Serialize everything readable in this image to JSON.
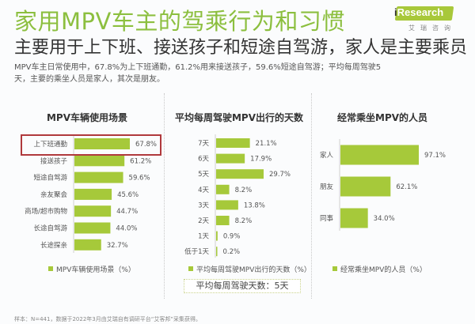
{
  "header": {
    "title": "家用MPV车主的驾乘行为和习惯",
    "subtitle": "主要用于上下班、接送孩子和短途自驾游，家人是主要乘员",
    "description": "MPV车主日常使用中，67.8%为上下班通勤，61.2%用来接送孩子，59.6%短途自驾游；平均每周驾驶5天，主要的乘坐人员是家人，其次是朋友。"
  },
  "logo": {
    "i": "i",
    "name": "Research",
    "sub": "艾瑞咨询"
  },
  "colors": {
    "bar": "#a6c93a",
    "title": "#8cbf3f",
    "highlight": "#b0393c"
  },
  "chart_data": [
    {
      "type": "bar",
      "orientation": "horizontal",
      "title": "MPV车辆使用场景",
      "categories": [
        "上下班通勤",
        "接送孩子",
        "短途自驾游",
        "亲友聚会",
        "商场/超市购物",
        "长途自驾游",
        "长途探亲"
      ],
      "values": [
        67.8,
        61.2,
        59.6,
        45.6,
        44.7,
        44.0,
        32.7
      ],
      "labels": [
        "67.8%",
        "61.2%",
        "59.6%",
        "45.6%",
        "44.7%",
        "44.0%",
        "32.7%"
      ],
      "legend": "MPV车辆使用场景（%）",
      "highlighted_category": "上下班通勤",
      "unit": "%"
    },
    {
      "type": "bar",
      "orientation": "horizontal",
      "title": "平均每周驾驶MPV出行的天数",
      "categories": [
        "7天",
        "6天",
        "5天",
        "4天",
        "3天",
        "2天",
        "1天",
        "低于1天"
      ],
      "values": [
        21.1,
        17.9,
        29.7,
        8.2,
        13.8,
        8.2,
        0.9,
        0.2
      ],
      "labels": [
        "21.1%",
        "17.9%",
        "29.7%",
        "8.2%",
        "13.8%",
        "8.2%",
        "0.9%",
        "0.2%"
      ],
      "legend": "平均每周驾驶MPV出行的天数（%）",
      "annotation": "平均每周驾驶天数：5天",
      "unit": "%"
    },
    {
      "type": "bar",
      "orientation": "horizontal",
      "title": "经常乘坐MPV的人员",
      "categories": [
        "家人",
        "朋友",
        "同事"
      ],
      "values": [
        97.1,
        62.1,
        34.0
      ],
      "labels": [
        "97.1%",
        "62.1%",
        "34.0%"
      ],
      "legend": "经常乘坐MPV的人员（%）",
      "unit": "%"
    }
  ],
  "footnote": "样本：N=441，数据于2022年3月由艾瑞自有调研平台“艾客邦”采集获得。"
}
